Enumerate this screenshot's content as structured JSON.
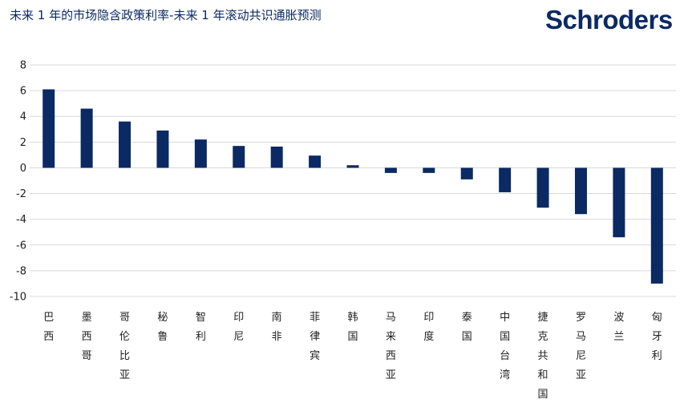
{
  "header": {
    "title": "未来 1 年的市场隐含政策利率-未来 1 年滚动共识通胀预测",
    "brand": "Schroders"
  },
  "colors": {
    "bar": "#0b2a63",
    "grid": "#d9d9d9",
    "title": "#0b2a63",
    "brand": "#0b2a63"
  },
  "chart_data": {
    "type": "bar",
    "title": "未来 1 年的市场隐含政策利率-未来 1 年滚动共识通胀预测",
    "xlabel": "",
    "ylabel": "",
    "ylim": [
      -10,
      8
    ],
    "yticks": [
      8,
      6,
      4,
      2,
      0,
      -2,
      -4,
      -6,
      -8,
      -10
    ],
    "grid": "horizontal",
    "categories": [
      "巴西",
      "墨西哥",
      "哥伦比亚",
      "秘鲁",
      "智利",
      "印尼",
      "南非",
      "菲律宾",
      "韩国",
      "马来西亚",
      "印度",
      "泰国",
      "中国台湾",
      "捷克共和国",
      "罗马尼亚",
      "波兰",
      "匈牙利"
    ],
    "values": [
      6.1,
      4.6,
      3.6,
      2.9,
      2.2,
      1.7,
      1.65,
      0.95,
      0.2,
      -0.4,
      -0.4,
      -0.9,
      -1.9,
      -3.1,
      -3.6,
      -5.4,
      -9.0
    ]
  }
}
